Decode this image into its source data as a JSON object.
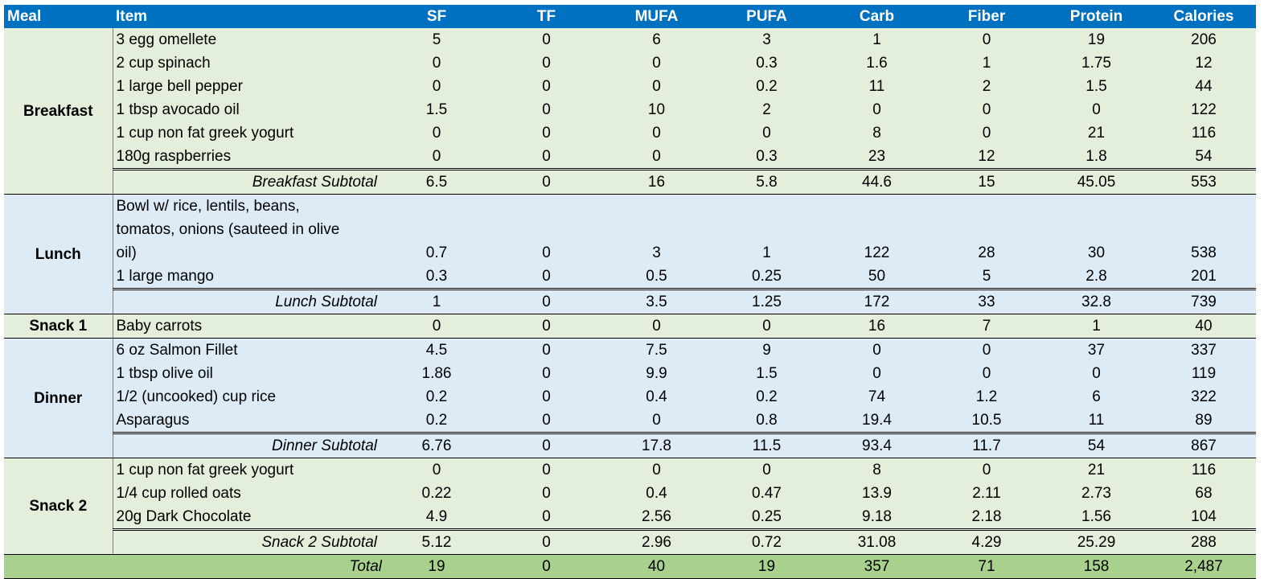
{
  "headers": [
    "Meal",
    "Item",
    "SF",
    "TF",
    "MUFA",
    "PUFA",
    "Carb",
    "Fiber",
    "Protein",
    "Calories"
  ],
  "groups": [
    {
      "meal": "Breakfast",
      "color": "#e3efda",
      "rows": [
        {
          "item": "3 egg omellete",
          "vals": [
            "5",
            "0",
            "6",
            "3",
            "1",
            "0",
            "19",
            "206"
          ]
        },
        {
          "item": "2 cup spinach",
          "vals": [
            "0",
            "0",
            "0",
            "0.3",
            "1.6",
            "1",
            "1.75",
            "12"
          ]
        },
        {
          "item": "1 large bell pepper",
          "vals": [
            "0",
            "0",
            "0",
            "0.2",
            "11",
            "2",
            "1.5",
            "44"
          ]
        },
        {
          "item": "1 tbsp avocado oil",
          "vals": [
            "1.5",
            "0",
            "10",
            "2",
            "0",
            "0",
            "0",
            "122"
          ]
        },
        {
          "item": "1 cup non fat greek yogurt",
          "vals": [
            "0",
            "0",
            "0",
            "0",
            "8",
            "0",
            "21",
            "116"
          ]
        },
        {
          "item": "180g raspberries",
          "vals": [
            "0",
            "0",
            "0",
            "0.3",
            "23",
            "12",
            "1.8",
            "54"
          ]
        }
      ],
      "subtotal": {
        "label": "Breakfast Subtotal",
        "vals": [
          "6.5",
          "0",
          "16",
          "5.8",
          "44.6",
          "15",
          "45.05",
          "553"
        ]
      }
    },
    {
      "meal": "Lunch",
      "color": "#ddebf7",
      "rows": [
        {
          "item_lines": [
            "Bowl w/ rice, lentils, beans,",
            "tomatos, onions (sauteed in olive",
            "oil)"
          ],
          "vals": [
            "0.7",
            "0",
            "3",
            "1",
            "122",
            "28",
            "30",
            "538"
          ]
        },
        {
          "item": "1 large mango",
          "vals": [
            "0.3",
            "0",
            "0.5",
            "0.25",
            "50",
            "5",
            "2.8",
            "201"
          ]
        }
      ],
      "subtotal": {
        "label": "Lunch Subtotal",
        "vals": [
          "1",
          "0",
          "3.5",
          "1.25",
          "172",
          "33",
          "32.8",
          "739"
        ]
      }
    },
    {
      "meal": "Snack 1",
      "color": "#e3efda",
      "rows": [
        {
          "item": "Baby carrots",
          "vals": [
            "0",
            "0",
            "0",
            "0",
            "16",
            "7",
            "1",
            "40"
          ]
        }
      ]
    },
    {
      "meal": "Dinner",
      "color": "#ddebf7",
      "rows": [
        {
          "item": "6 oz Salmon Fillet",
          "vals": [
            "4.5",
            "0",
            "7.5",
            "9",
            "0",
            "0",
            "37",
            "337"
          ]
        },
        {
          "item": "1 tbsp olive oil",
          "vals": [
            "1.86",
            "0",
            "9.9",
            "1.5",
            "0",
            "0",
            "0",
            "119"
          ]
        },
        {
          "item": "1/2 (uncooked) cup rice",
          "vals": [
            "0.2",
            "0",
            "0.4",
            "0.2",
            "74",
            "1.2",
            "6",
            "322"
          ]
        },
        {
          "item": "Asparagus",
          "vals": [
            "0.2",
            "0",
            "0",
            "0.8",
            "19.4",
            "10.5",
            "11",
            "89"
          ]
        }
      ],
      "subtotal": {
        "label": "Dinner Subtotal",
        "vals": [
          "6.76",
          "0",
          "17.8",
          "11.5",
          "93.4",
          "11.7",
          "54",
          "867"
        ]
      }
    },
    {
      "meal": "Snack 2",
      "color": "#e3efda",
      "rows": [
        {
          "item": "1 cup non fat greek yogurt",
          "vals": [
            "0",
            "0",
            "0",
            "0",
            "8",
            "0",
            "21",
            "116"
          ]
        },
        {
          "item": "1/4 cup rolled oats",
          "vals": [
            "0.22",
            "0",
            "0.4",
            "0.47",
            "13.9",
            "2.11",
            "2.73",
            "68"
          ]
        },
        {
          "item": "20g Dark Chocolate",
          "vals": [
            "4.9",
            "0",
            "2.56",
            "0.25",
            "9.18",
            "2.18",
            "1.56",
            "104"
          ]
        }
      ],
      "subtotal": {
        "label": "Snack 2 Subtotal",
        "vals": [
          "5.12",
          "0",
          "2.96",
          "0.72",
          "31.08",
          "4.29",
          "25.29",
          "288"
        ]
      }
    }
  ],
  "total": {
    "label": "Total",
    "vals": [
      "19",
      "0",
      "40",
      "19",
      "357",
      "71",
      "158",
      "2,487"
    ]
  },
  "colors": {
    "header": "#0070c0",
    "green": "#e3efda",
    "blue": "#ddebf7",
    "total": "#a9d18e"
  }
}
